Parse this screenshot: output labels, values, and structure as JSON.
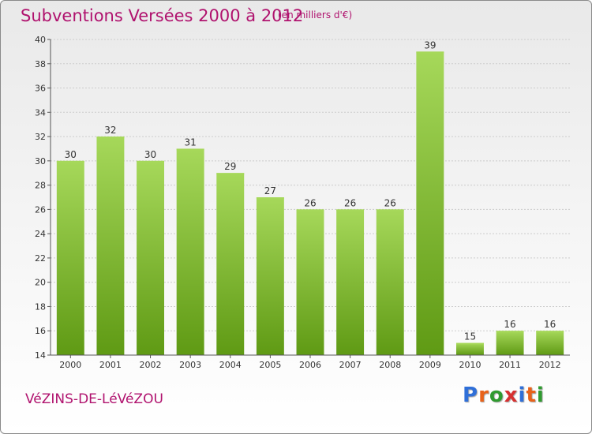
{
  "title": "Subventions Versées 2000 à 2012",
  "subtitle": "(en milliers d'€)",
  "commune": "VéZINS-DE-LéVéZOU",
  "logo": {
    "letters": [
      "P",
      "r",
      "o",
      "x",
      "i",
      "t",
      "i"
    ],
    "colors": [
      "#2f6fd8",
      "#e8621a",
      "#2f9a2f",
      "#d63030",
      "#2f6fd8",
      "#e8621a",
      "#2f9a2f"
    ]
  },
  "colors": {
    "bar_light": "#a6d85a",
    "bar_dark": "#5f9a14",
    "axis": "#555555",
    "grid": "#cccccc",
    "text_accent": "#b0126e"
  },
  "chart_data": {
    "type": "bar",
    "categories": [
      "2000",
      "2001",
      "2002",
      "2003",
      "2004",
      "2005",
      "2006",
      "2007",
      "2008",
      "2009",
      "2010",
      "2011",
      "2012"
    ],
    "values": [
      30,
      32,
      30,
      31,
      29,
      27,
      26,
      26,
      26,
      39,
      15,
      16,
      16
    ],
    "ylim": [
      14,
      40
    ],
    "yticks": [
      14,
      16,
      18,
      20,
      22,
      24,
      26,
      28,
      30,
      32,
      34,
      36,
      38,
      40
    ],
    "grid": true
  }
}
